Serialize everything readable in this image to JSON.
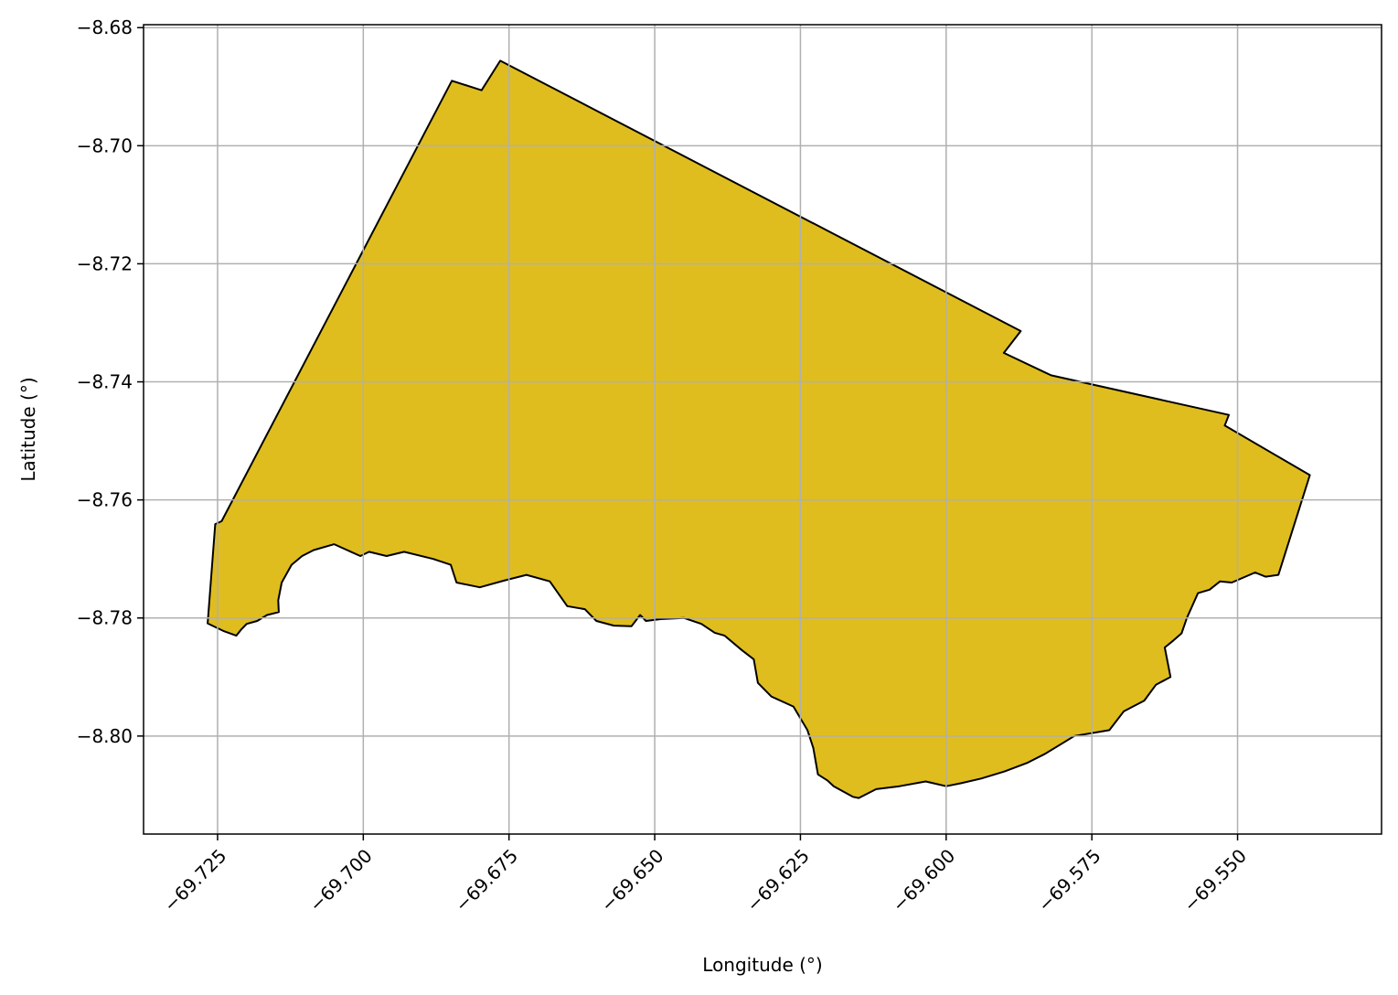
{
  "chart_data": {
    "type": "map",
    "title": "",
    "xlabel": "Longitude (°)",
    "ylabel": "Latitude (°)",
    "xlim": [
      -69.7377,
      -69.5253
    ],
    "ylim": [
      -8.8166,
      -8.6795
    ],
    "grid": true,
    "fill_color": "#dfbd1f",
    "edge_color": "#000000",
    "grid_color": "#b0b0b0",
    "x_ticks": [
      -69.725,
      -69.7,
      -69.675,
      -69.65,
      -69.625,
      -69.6,
      -69.575,
      -69.55
    ],
    "x_tick_labels": [
      "−69.725",
      "−69.700",
      "−69.675",
      "−69.650",
      "−69.625",
      "−69.600",
      "−69.575",
      "−69.550"
    ],
    "y_ticks": [
      -8.68,
      -8.7,
      -8.72,
      -8.74,
      -8.76,
      -8.78,
      -8.8
    ],
    "y_tick_labels": [
      "−8.68",
      "−8.70",
      "−8.72",
      "−8.74",
      "−8.76",
      "−8.78",
      "−8.80"
    ],
    "polygon": [
      [
        -69.7267,
        -8.7809
      ],
      [
        -69.7254,
        -8.7641
      ],
      [
        -69.7243,
        -8.7636
      ],
      [
        -69.6848,
        -8.689
      ],
      [
        -69.6797,
        -8.6906
      ],
      [
        -69.6765,
        -8.6856
      ],
      [
        -69.5872,
        -8.7314
      ],
      [
        -69.5901,
        -8.7351
      ],
      [
        -69.582,
        -8.7389
      ],
      [
        -69.5515,
        -8.7456
      ],
      [
        -69.5522,
        -8.7474
      ],
      [
        -69.5376,
        -8.7558
      ],
      [
        -69.543,
        -8.7727
      ],
      [
        -69.5452,
        -8.773
      ],
      [
        -69.547,
        -8.7723
      ],
      [
        -69.551,
        -8.774
      ],
      [
        -69.553,
        -8.7738
      ],
      [
        -69.5548,
        -8.7752
      ],
      [
        -69.5568,
        -8.7758
      ],
      [
        -69.5587,
        -8.78
      ],
      [
        -69.5596,
        -8.7826
      ],
      [
        -69.561,
        -8.7838
      ],
      [
        -69.5625,
        -8.785
      ],
      [
        -69.5615,
        -8.79
      ],
      [
        -69.564,
        -8.7913
      ],
      [
        -69.566,
        -8.794
      ],
      [
        -69.5695,
        -8.7958
      ],
      [
        -69.572,
        -8.799
      ],
      [
        -69.575,
        -8.7995
      ],
      [
        -69.578,
        -8.8
      ],
      [
        -69.583,
        -8.803
      ],
      [
        -69.586,
        -8.8045
      ],
      [
        -69.59,
        -8.806
      ],
      [
        -69.594,
        -8.8072
      ],
      [
        -69.5975,
        -8.808
      ],
      [
        -69.6,
        -8.8085
      ],
      [
        -69.6035,
        -8.8077
      ],
      [
        -69.608,
        -8.8085
      ],
      [
        -69.612,
        -8.809
      ],
      [
        -69.615,
        -8.8105
      ],
      [
        -69.616,
        -8.8103
      ],
      [
        -69.6193,
        -8.8085
      ],
      [
        -69.6204,
        -8.8075
      ],
      [
        -69.622,
        -8.8065
      ],
      [
        -69.6228,
        -8.802
      ],
      [
        -69.6238,
        -8.799
      ],
      [
        -69.6262,
        -8.795
      ],
      [
        -69.63,
        -8.7933
      ],
      [
        -69.6323,
        -8.791
      ],
      [
        -69.633,
        -8.787
      ],
      [
        -69.635,
        -8.7855
      ],
      [
        -69.638,
        -8.783
      ],
      [
        -69.6397,
        -8.7825
      ],
      [
        -69.642,
        -8.781
      ],
      [
        -69.645,
        -8.78
      ],
      [
        -69.649,
        -8.7802
      ],
      [
        -69.6515,
        -8.7805
      ],
      [
        -69.6525,
        -8.7795
      ],
      [
        -69.654,
        -8.7814
      ],
      [
        -69.657,
        -8.7813
      ],
      [
        -69.66,
        -8.7805
      ],
      [
        -69.662,
        -8.7785
      ],
      [
        -69.665,
        -8.778
      ],
      [
        -69.668,
        -8.7738
      ],
      [
        -69.672,
        -8.7727
      ],
      [
        -69.676,
        -8.7737
      ],
      [
        -69.68,
        -8.7748
      ],
      [
        -69.684,
        -8.774
      ],
      [
        -69.685,
        -8.771
      ],
      [
        -69.688,
        -8.77
      ],
      [
        -69.693,
        -8.7688
      ],
      [
        -69.696,
        -8.7695
      ],
      [
        -69.699,
        -8.7688
      ],
      [
        -69.7005,
        -8.7695
      ],
      [
        -69.705,
        -8.7675
      ],
      [
        -69.7085,
        -8.7685
      ],
      [
        -69.7105,
        -8.7695
      ],
      [
        -69.7123,
        -8.771
      ],
      [
        -69.714,
        -8.774
      ],
      [
        -69.7146,
        -8.777
      ],
      [
        -69.7145,
        -8.779
      ],
      [
        -69.7165,
        -8.7795
      ],
      [
        -69.7182,
        -8.7805
      ],
      [
        -69.72,
        -8.781
      ],
      [
        -69.721,
        -8.782
      ],
      [
        -69.7218,
        -8.783
      ],
      [
        -69.724,
        -8.7822
      ],
      [
        -69.7255,
        -8.7815
      ]
    ]
  }
}
